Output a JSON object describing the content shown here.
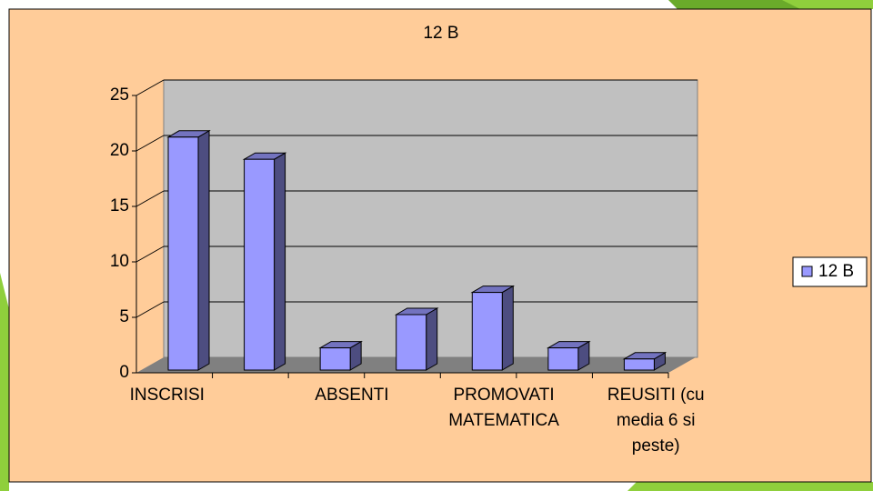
{
  "chart_data": {
    "type": "bar",
    "title": "12 B",
    "categories": [
      "INSCRISI",
      null,
      "ABSENTI",
      null,
      "PROMOVATI MATEMATICA",
      null,
      "REUSITI (cu media 6 si peste)"
    ],
    "series": [
      {
        "name": "12 B",
        "color": "#9999FF",
        "values": [
          21,
          19,
          2,
          5,
          7,
          2,
          1
        ]
      }
    ],
    "ylim": [
      0,
      25
    ],
    "yticks": [
      0,
      5,
      10,
      15,
      20,
      25
    ],
    "grid": true,
    "legend": "right"
  }
}
